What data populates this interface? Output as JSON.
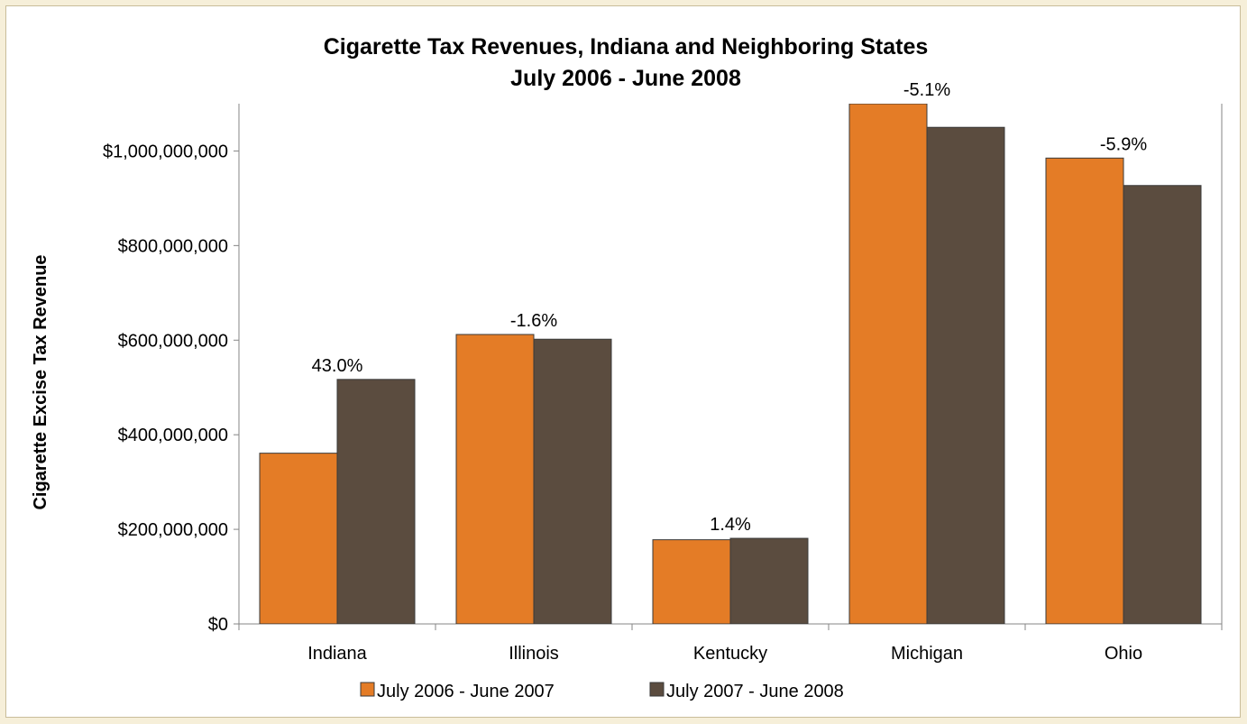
{
  "chart_data": {
    "type": "bar",
    "title": "Cigarette Tax Revenues, Indiana and Neighboring States",
    "subtitle": "July 2006 - June 2008",
    "ylabel": "Cigarette Excise Tax Revenue",
    "xlabel": "",
    "categories": [
      "Indiana",
      "Illinois",
      "Kentucky",
      "Michigan",
      "Ohio"
    ],
    "series": [
      {
        "name": "July 2006 - June 2007",
        "color": "#e47c26",
        "values": [
          361000000,
          612000000,
          178000000,
          1106000000,
          985000000
        ]
      },
      {
        "name": "July 2007 - June 2008",
        "color": "#5b4c3f",
        "values": [
          517000000,
          602000000,
          181000000,
          1050000000,
          927000000
        ]
      }
    ],
    "percent_change_labels": [
      "43.0%",
      "-1.6%",
      "1.4%",
      "-5.1%",
      "-5.9%"
    ],
    "ylim": [
      0,
      1100000000
    ],
    "y_ticks": [
      {
        "value": 0,
        "label": "$0"
      },
      {
        "value": 200000000,
        "label": "$200,000,000"
      },
      {
        "value": 400000000,
        "label": "$400,000,000"
      },
      {
        "value": 600000000,
        "label": "$600,000,000"
      },
      {
        "value": 800000000,
        "label": "$800,000,000"
      },
      {
        "value": 1000000000,
        "label": "$1,000,000,000"
      }
    ],
    "grid": false,
    "legend_position": "bottom"
  }
}
